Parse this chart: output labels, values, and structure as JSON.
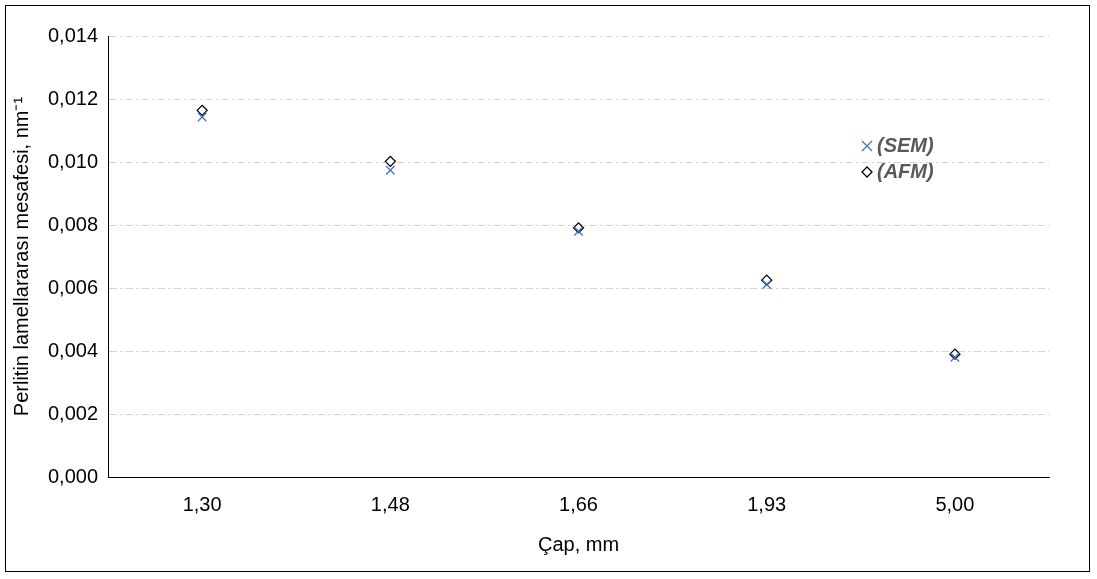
{
  "chart_data": {
    "type": "scatter",
    "xlabel": "Çap, mm",
    "ylabel": "Perlitin lamellararası mesafesi, nm⁻¹",
    "categories": [
      "1,30",
      "1,48",
      "1,66",
      "1,93",
      "5,00"
    ],
    "series": [
      {
        "name": "(SEM)",
        "color": "#4472c4",
        "marker": "cross",
        "values": [
          0.01143,
          0.00974,
          0.0078,
          0.00611,
          0.0038
        ]
      },
      {
        "name": "(AFM)",
        "color": "#000000",
        "marker": "diamond",
        "values": [
          0.01164,
          0.01002,
          0.00791,
          0.00625,
          0.0039
        ]
      }
    ],
    "ylim": [
      0,
      0.014
    ],
    "yticks": [
      {
        "value": 0,
        "label": "0,000"
      },
      {
        "value": 0.002,
        "label": "0,002"
      },
      {
        "value": 0.004,
        "label": "0,004"
      },
      {
        "value": 0.006,
        "label": "0,006"
      },
      {
        "value": 0.008,
        "label": "0,008"
      },
      {
        "value": 0.01,
        "label": "0,010"
      },
      {
        "value": 0.012,
        "label": "0,012"
      },
      {
        "value": 0.014,
        "label": "0,014"
      }
    ],
    "grid": "y",
    "legend": "right",
    "line_style": "none"
  }
}
